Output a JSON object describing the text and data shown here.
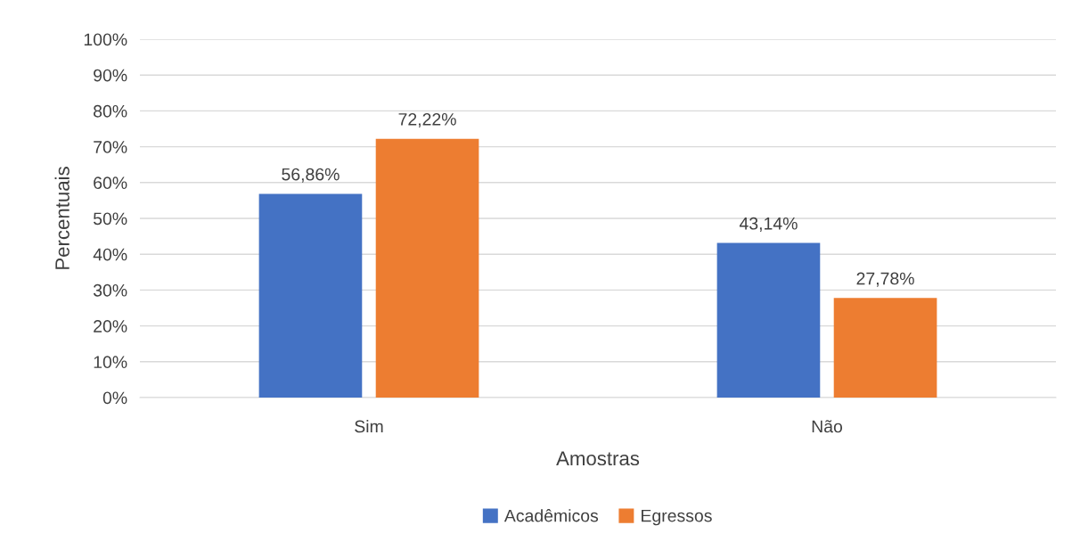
{
  "chart_data": {
    "type": "bar",
    "xlabel": "Amostras",
    "ylabel": "Percentuais",
    "categories": [
      "Sim",
      "Não"
    ],
    "series": [
      {
        "name": "Acadêmicos",
        "color": "#4472c4",
        "values": [
          56.86,
          43.14
        ],
        "value_labels": [
          "56,86%",
          "43,14%"
        ]
      },
      {
        "name": "Egressos",
        "color": "#ed7d31",
        "values": [
          72.22,
          27.78
        ],
        "value_labels": [
          "72,22%",
          "27,78%"
        ]
      }
    ],
    "ylim": [
      0,
      100
    ],
    "yticks": [
      {
        "value": 0,
        "label": "0%"
      },
      {
        "value": 10,
        "label": "10%"
      },
      {
        "value": 20,
        "label": "20%"
      },
      {
        "value": 30,
        "label": "30%"
      },
      {
        "value": 40,
        "label": "40%"
      },
      {
        "value": 50,
        "label": "50%"
      },
      {
        "value": 60,
        "label": "60%"
      },
      {
        "value": 70,
        "label": "70%"
      },
      {
        "value": 80,
        "label": "80%"
      },
      {
        "value": 90,
        "label": "90%"
      },
      {
        "value": 100,
        "label": "100%"
      }
    ],
    "grid": "y",
    "legend": "bottom"
  }
}
